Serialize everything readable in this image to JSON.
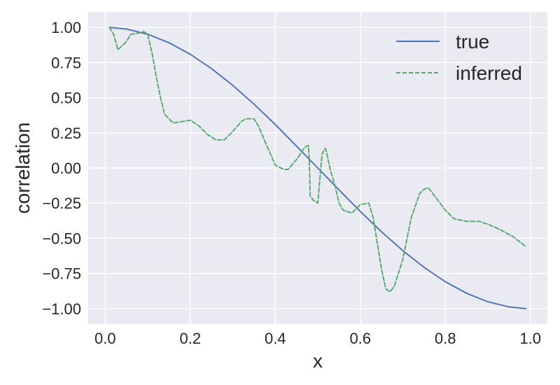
{
  "chart_data": {
    "type": "line",
    "title": "",
    "xlabel": "x",
    "ylabel": "correlation",
    "xlim": [
      -0.04,
      1.04
    ],
    "ylim": [
      -1.11,
      1.11
    ],
    "x_ticks": [
      0.0,
      0.2,
      0.4,
      0.6,
      0.8,
      1.0
    ],
    "x_tick_labels": [
      "0.0",
      "0.2",
      "0.4",
      "0.6",
      "0.8",
      "1.0"
    ],
    "y_ticks": [
      1.0,
      0.75,
      0.5,
      0.25,
      0.0,
      -0.25,
      -0.5,
      -0.75,
      -1.0
    ],
    "y_tick_labels": [
      "1.00",
      "0.75",
      "0.50",
      "0.25",
      "0.00",
      "−0.25",
      "−0.50",
      "−0.75",
      "−1.00"
    ],
    "grid": true,
    "legend_position": "top-right",
    "colors": {
      "background": "#eaeaf2",
      "grid": "#ffffff",
      "true": "#4c72b0",
      "inferred": "#55a868"
    },
    "series": [
      {
        "name": "true",
        "style": "solid",
        "x": [
          0.01,
          0.05,
          0.1,
          0.15,
          0.2,
          0.25,
          0.3,
          0.35,
          0.4,
          0.45,
          0.5,
          0.55,
          0.6,
          0.65,
          0.7,
          0.75,
          0.8,
          0.85,
          0.9,
          0.95,
          0.99
        ],
        "y": [
          1.0,
          0.988,
          0.951,
          0.891,
          0.809,
          0.707,
          0.588,
          0.454,
          0.309,
          0.156,
          0.0,
          -0.156,
          -0.309,
          -0.454,
          -0.588,
          -0.707,
          -0.809,
          -0.891,
          -0.951,
          -0.988,
          -1.0
        ]
      },
      {
        "name": "inferred",
        "style": "dashed",
        "x": [
          0.01,
          0.02,
          0.03,
          0.05,
          0.06,
          0.08,
          0.09,
          0.1,
          0.11,
          0.12,
          0.13,
          0.14,
          0.16,
          0.18,
          0.2,
          0.22,
          0.24,
          0.26,
          0.28,
          0.3,
          0.32,
          0.33,
          0.35,
          0.36,
          0.38,
          0.4,
          0.42,
          0.43,
          0.45,
          0.47,
          0.478,
          0.48,
          0.482,
          0.49,
          0.5,
          0.51,
          0.518,
          0.52,
          0.53,
          0.54,
          0.55,
          0.56,
          0.58,
          0.6,
          0.62,
          0.63,
          0.65,
          0.66,
          0.67,
          0.68,
          0.7,
          0.72,
          0.74,
          0.75,
          0.76,
          0.77,
          0.8,
          0.82,
          0.85,
          0.88,
          0.9,
          0.93,
          0.96,
          0.99
        ],
        "y": [
          1.0,
          0.95,
          0.84,
          0.9,
          0.95,
          0.96,
          0.97,
          0.95,
          0.82,
          0.65,
          0.5,
          0.38,
          0.32,
          0.33,
          0.34,
          0.3,
          0.24,
          0.2,
          0.2,
          0.26,
          0.33,
          0.35,
          0.35,
          0.3,
          0.16,
          0.02,
          -0.01,
          -0.01,
          0.06,
          0.15,
          0.16,
          0.05,
          -0.2,
          -0.23,
          -0.25,
          0.1,
          0.14,
          0.12,
          -0.02,
          -0.12,
          -0.25,
          -0.3,
          -0.32,
          -0.26,
          -0.25,
          -0.35,
          -0.72,
          -0.86,
          -0.88,
          -0.84,
          -0.65,
          -0.35,
          -0.18,
          -0.15,
          -0.14,
          -0.18,
          -0.3,
          -0.36,
          -0.38,
          -0.38,
          -0.4,
          -0.44,
          -0.49,
          -0.56
        ]
      }
    ]
  }
}
